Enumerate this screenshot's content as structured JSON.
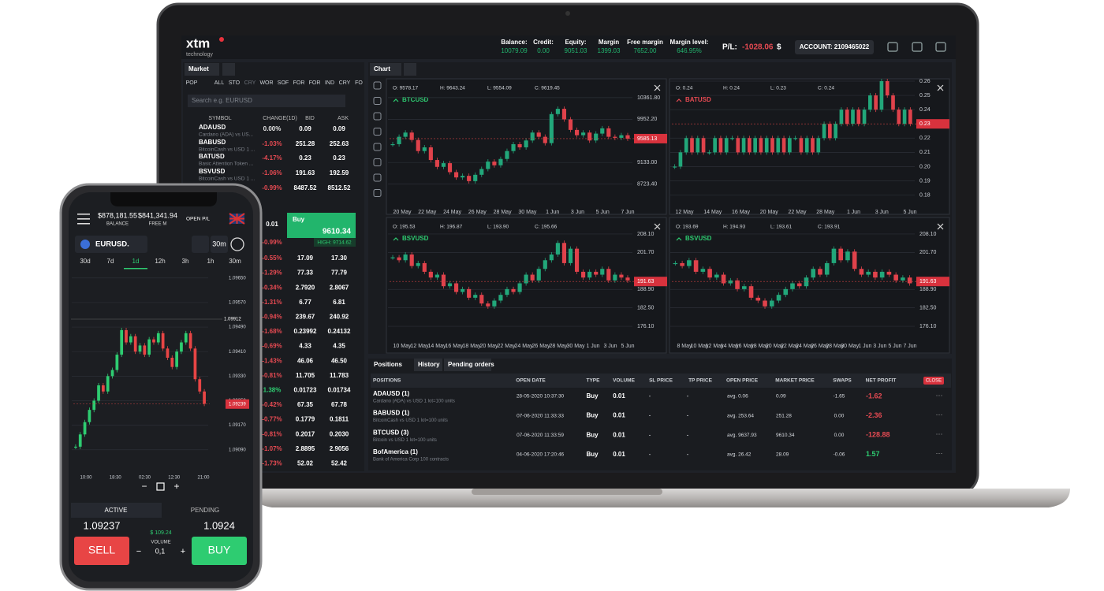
{
  "header": {
    "logo": "xtm",
    "logo_sub": "technology",
    "stats": [
      {
        "label": "Balance:",
        "value": "10079.09"
      },
      {
        "label": "Credit:",
        "value": "0.00"
      },
      {
        "label": "Equity:",
        "value": "9051.03"
      },
      {
        "label": "Margin",
        "value": "1399.03"
      },
      {
        "label": "Free margin",
        "value": "7652.00"
      },
      {
        "label": "Margin level:",
        "value": "646.95%"
      }
    ],
    "pl_label": "P/L:",
    "pl_value": "-1028.06",
    "currency": "$",
    "account": "ACCOUNT: 2109465022"
  },
  "market": {
    "tab": "Market",
    "filters": [
      "POP",
      "ALL",
      "STO",
      "CRY",
      "WOR",
      "SOF",
      "FOR",
      "FOR",
      "IND",
      "CRY",
      "FO"
    ],
    "search": "Search e.g. EURUSD",
    "columns": [
      "SYMBOL",
      "CHANGE(1D)",
      "BID",
      "ASK"
    ],
    "rows": [
      {
        "symbol": "ADAUSD",
        "desc": "Cardano (ADA) vs US...",
        "change": "0.00%",
        "bid": "0.09",
        "ask": "0.09"
      },
      {
        "symbol": "BABUSD",
        "desc": "BitcoinCash vs USD 1 ...",
        "change": "-1.03%",
        "bid": "251.28",
        "ask": "252.63"
      },
      {
        "symbol": "BATUSD",
        "desc": "Basic Attention Token ...",
        "change": "-4.17%",
        "bid": "0.23",
        "ask": "0.23"
      },
      {
        "symbol": "BSVUSD",
        "desc": "BitcoinCash vs USD 1 ...",
        "change": "-1.06%",
        "bid": "191.63",
        "ask": "192.59"
      },
      {
        "change": "-0.99%",
        "bid": "8487.52",
        "ask": "8512.52"
      }
    ],
    "trade": {
      "volume": "0.01",
      "change": "-0.99%",
      "buy_label": "Buy",
      "buy_price": "9610.34",
      "high": "HIGH: 9714.62"
    },
    "more_rows": [
      {
        "change": "-0.55%",
        "bid": "17.09",
        "ask": "17.30"
      },
      {
        "change": "-1.29%",
        "bid": "77.33",
        "ask": "77.79"
      },
      {
        "change": "-0.34%",
        "bid": "2.7920",
        "ask": "2.8067"
      },
      {
        "change": "-1.31%",
        "bid": "6.77",
        "ask": "6.81"
      },
      {
        "change": "-0.94%",
        "bid": "239.67",
        "ask": "240.92"
      },
      {
        "change": "-1.68%",
        "bid": "0.23992",
        "ask": "0.24132"
      },
      {
        "change": "-0.69%",
        "bid": "4.33",
        "ask": "4.35"
      },
      {
        "change": "-1.43%",
        "bid": "46.06",
        "ask": "46.50"
      },
      {
        "change": "-0.81%",
        "bid": "11.705",
        "ask": "11.783"
      },
      {
        "change": "1.38%",
        "bid": "0.01723",
        "ask": "0.01734"
      },
      {
        "change": "-0.42%",
        "bid": "67.35",
        "ask": "67.78"
      },
      {
        "change": "-0.77%",
        "bid": "0.1779",
        "ask": "0.1811"
      },
      {
        "change": "-0.81%",
        "bid": "0.2017",
        "ask": "0.2030"
      },
      {
        "change": "-1.07%",
        "bid": "2.8895",
        "ask": "2.9056"
      },
      {
        "change": "-1.73%",
        "bid": "52.02",
        "ask": "52.42"
      }
    ]
  },
  "chart_tab": "Chart",
  "chart_data": [
    {
      "type": "candlestick",
      "title": "BTCUSD",
      "ohlc": [
        "O: 9578.17",
        "H: 9643.24",
        "L: 9554.09",
        "C: 9619.45"
      ],
      "up_color": "#22a77a",
      "down_color": "#e0424b",
      "grid": true,
      "ylim": [
        8300,
        10450
      ],
      "yticks": [
        {
          "value": 10361.8,
          "label": "10361.80"
        },
        {
          "value": 9952.2,
          "label": "9952.20"
        },
        {
          "value": 9133,
          "label": "9133.00"
        },
        {
          "value": 8723.4,
          "label": "8723.40"
        }
      ],
      "last": 9585.13,
      "x_labels": [
        "20 May",
        "22 May",
        "24 May",
        "26 May",
        "28 May",
        "30 May",
        "1 Jun",
        "3 Jun",
        "5 Jun",
        "7 Jun"
      ],
      "values": [
        9480,
        9620,
        9700,
        9560,
        9350,
        9420,
        9180,
        9050,
        9120,
        8950,
        8850,
        8880,
        8780,
        8900,
        9010,
        9150,
        9080,
        9200,
        9350,
        9480,
        9420,
        9550,
        9700,
        9620,
        9500,
        10050,
        10150,
        9950,
        9750,
        9650,
        9700,
        9550,
        9680,
        9780,
        9620,
        9600,
        9650,
        9585
      ]
    },
    {
      "type": "candlestick",
      "title": "BATUSD",
      "ohlc": [
        "O: 0.24",
        "H: 0.24",
        "L: 0.23",
        "C: 0.24"
      ],
      "up_color": "#22a77a",
      "down_color": "#e0424b",
      "grid": true,
      "ylim": [
        0.172,
        0.26
      ],
      "yticks": [
        0.26,
        0.25,
        0.24,
        0.22,
        0.21,
        {
          "value": 0.2,
          "label": "0.20"
        },
        0.19,
        0.18
      ],
      "last": 0.23,
      "x_labels": [
        "12 May",
        "14 May",
        "16 May",
        "20 May",
        "22 May",
        "28 May",
        "1 Jun",
        "3 Jun",
        "5 Jun"
      ],
      "values": [
        0.2,
        0.21,
        0.22,
        0.21,
        0.22,
        0.21,
        0.21,
        0.22,
        0.21,
        0.22,
        0.22,
        0.21,
        0.22,
        0.21,
        0.22,
        0.21,
        0.22,
        0.21,
        0.22,
        0.21,
        0.22,
        0.22,
        0.21,
        0.22,
        0.21,
        0.22,
        0.23,
        0.22,
        0.23,
        0.24,
        0.23,
        0.24,
        0.23,
        0.24,
        0.25,
        0.24,
        0.26,
        0.25,
        0.24,
        0.23,
        0.24,
        0.23
      ]
    },
    {
      "type": "candlestick",
      "title": "BSVUSD",
      "ohlc": [
        "O: 195.53",
        "H: 196.87",
        "L: 193.90",
        "C: 195.66"
      ],
      "up_color": "#22a77a",
      "down_color": "#e0424b",
      "grid": true,
      "ylim": [
        171.2,
        210
      ],
      "yticks": [
        {
          "value": 208.1,
          "label": "208.10"
        },
        {
          "value": 201.7,
          "label": "201.70"
        },
        {
          "value": 188.9,
          "label": "188.90"
        },
        {
          "value": 182.5,
          "label": "182.50"
        },
        {
          "value": 176.1,
          "label": "176.10"
        }
      ],
      "last": 191.63,
      "x_labels": [
        "10 May",
        "12 May",
        "14 May",
        "16 May",
        "18 May",
        "20 May",
        "22 May",
        "24 May",
        "26 May",
        "28 May",
        "30 May",
        "1 Jun",
        "3 Jun",
        "5 Jun"
      ],
      "values": [
        200,
        199,
        201,
        197,
        198,
        195,
        193,
        194,
        190,
        191,
        188,
        189,
        186,
        187,
        184,
        183,
        185,
        187,
        189,
        188,
        191,
        194,
        192,
        196,
        199,
        201,
        205,
        198,
        203,
        195,
        193,
        195,
        194,
        196,
        192,
        194,
        193,
        192
      ]
    },
    {
      "type": "candlestick",
      "title": "BSVUSD",
      "ohlc": [
        "O: 193.69",
        "H: 194.93",
        "L: 193.61",
        "C: 193.91"
      ],
      "up_color": "#22a77a",
      "down_color": "#e0424b",
      "grid": true,
      "ylim": [
        171.2,
        210
      ],
      "yticks": [
        {
          "value": 208.1,
          "label": "208.10"
        },
        {
          "value": 201.7,
          "label": "201.70"
        },
        {
          "value": 188.9,
          "label": "188.90"
        },
        {
          "value": 182.5,
          "label": "182.50"
        },
        {
          "value": 176.1,
          "label": "176.10"
        }
      ],
      "last": 191.63,
      "x_labels": [
        "8 May",
        "10 May",
        "12 May",
        "14 May",
        "16 May",
        "18 May",
        "20 May",
        "22 May",
        "24 May",
        "26 May",
        "28 May",
        "30 May",
        "1 Jun",
        "3 Jun",
        "5 Jun",
        "7 Jun"
      ],
      "values": [
        198,
        197,
        199,
        195,
        196,
        193,
        194,
        191,
        192,
        189,
        190,
        186,
        185,
        183,
        185,
        187,
        189,
        191,
        190,
        193,
        196,
        194,
        198,
        203,
        199,
        202,
        196,
        194,
        195,
        193,
        195,
        194,
        192,
        193,
        191
      ]
    },
    {
      "type": "candlestick",
      "title": "EURUSD.",
      "up_color": "#2ecc71",
      "down_color": "#e84545",
      "grid": true,
      "ylim": [
        1.0902,
        1.0967
      ],
      "yticks": [
        {
          "value": 1.0965,
          "label": "1.09650"
        },
        {
          "value": 1.0957,
          "label": "1.09570"
        },
        {
          "value": 1.0949,
          "label": "1.09490"
        },
        {
          "value": 1.0941,
          "label": "1.09410"
        },
        {
          "value": 1.0933,
          "label": "1.09330"
        },
        {
          "value": 1.0925,
          "label": "1.09250"
        },
        {
          "value": 1.0917,
          "label": "1.09170"
        },
        {
          "value": 1.0909,
          "label": "1.09090"
        }
      ],
      "last": 1.09239,
      "crosshair_label": "1.09912",
      "x_labels": [
        "10:00",
        "18:30",
        "02:30",
        "12:30",
        "21:00"
      ],
      "values": [
        1.091,
        1.0914,
        1.0918,
        1.0922,
        1.0925,
        1.093,
        1.0928,
        1.0933,
        1.0935,
        1.094,
        1.0948,
        1.0944,
        1.0946,
        1.0941,
        1.0943,
        1.094,
        1.0945,
        1.0944,
        1.0947,
        1.0942,
        1.0939,
        1.0936,
        1.0941,
        1.0944,
        1.0947,
        1.0942,
        1.0932,
        1.0928,
        1.0924
      ]
    }
  ],
  "positions": {
    "tabs": [
      "Positions",
      "History",
      "Pending orders"
    ],
    "columns": [
      "POSITIONS",
      "OPEN DATE",
      "TYPE",
      "VOLUME",
      "SL PRICE",
      "TP PRICE",
      "OPEN PRICE",
      "MARKET PRICE",
      "SWAPS",
      "NET PROFIT"
    ],
    "close": "CLOSE",
    "rows": [
      {
        "name": "ADAUSD (1)",
        "desc": "Cardano (ADA) vs USD 1 lot=100 units",
        "date": "28-05-2020 10:37:30",
        "type": "Buy",
        "volume": "0.01",
        "sl": "-",
        "tp": "-",
        "open": "avg. 0.06",
        "market": "0.09",
        "swaps": "-1.65",
        "profit": "-1.62"
      },
      {
        "name": "BABUSD (1)",
        "desc": "BitcoinCash vs USD 1 lot=100 units",
        "date": "07-06-2020 11:33:33",
        "type": "Buy",
        "volume": "0.01",
        "sl": "-",
        "tp": "-",
        "open": "avg. 253.64",
        "market": "251.28",
        "swaps": "0.00",
        "profit": "-2.36"
      },
      {
        "name": "BTCUSD (3)",
        "desc": "Bitcoin vs USD 1 lot=100 units",
        "date": "07-06-2020 11:33:59",
        "type": "Buy",
        "volume": "0.01",
        "sl": "-",
        "tp": "-",
        "open": "avg. 9637.93",
        "market": "9610.34",
        "swaps": "0.00",
        "profit": "-128.88"
      },
      {
        "name": "BofAmerica (1)",
        "desc": "Bank of America Corp 100 contracts",
        "date": "04-06-2020 17:20:46",
        "type": "Buy",
        "volume": "0.01",
        "sl": "-",
        "tp": "-",
        "open": "avg. 26.42",
        "market": "28.09",
        "swaps": "-0.06",
        "profit": "1.57"
      }
    ]
  },
  "phone": {
    "balance": "$878,181.55",
    "balance_label": "BALANCE",
    "free": "$841,341.94",
    "free_label": "FREE M",
    "open_pl": "OPEN P/L",
    "symbol": "EURUSD.",
    "timeframe": "30m",
    "timeframes": [
      "30d",
      "7d",
      "1d",
      "12h",
      "3h",
      "1h",
      "30m"
    ],
    "tabs": [
      "ACTIVE",
      "PENDING"
    ],
    "sell_price": "1.09237",
    "buy_price": "1.0924",
    "spread": "$ 109.24",
    "volume_label": "VOLUME",
    "volume": "0,1",
    "sell": "SELL",
    "buy": "BUY",
    "minus": "−",
    "plus": "+"
  }
}
